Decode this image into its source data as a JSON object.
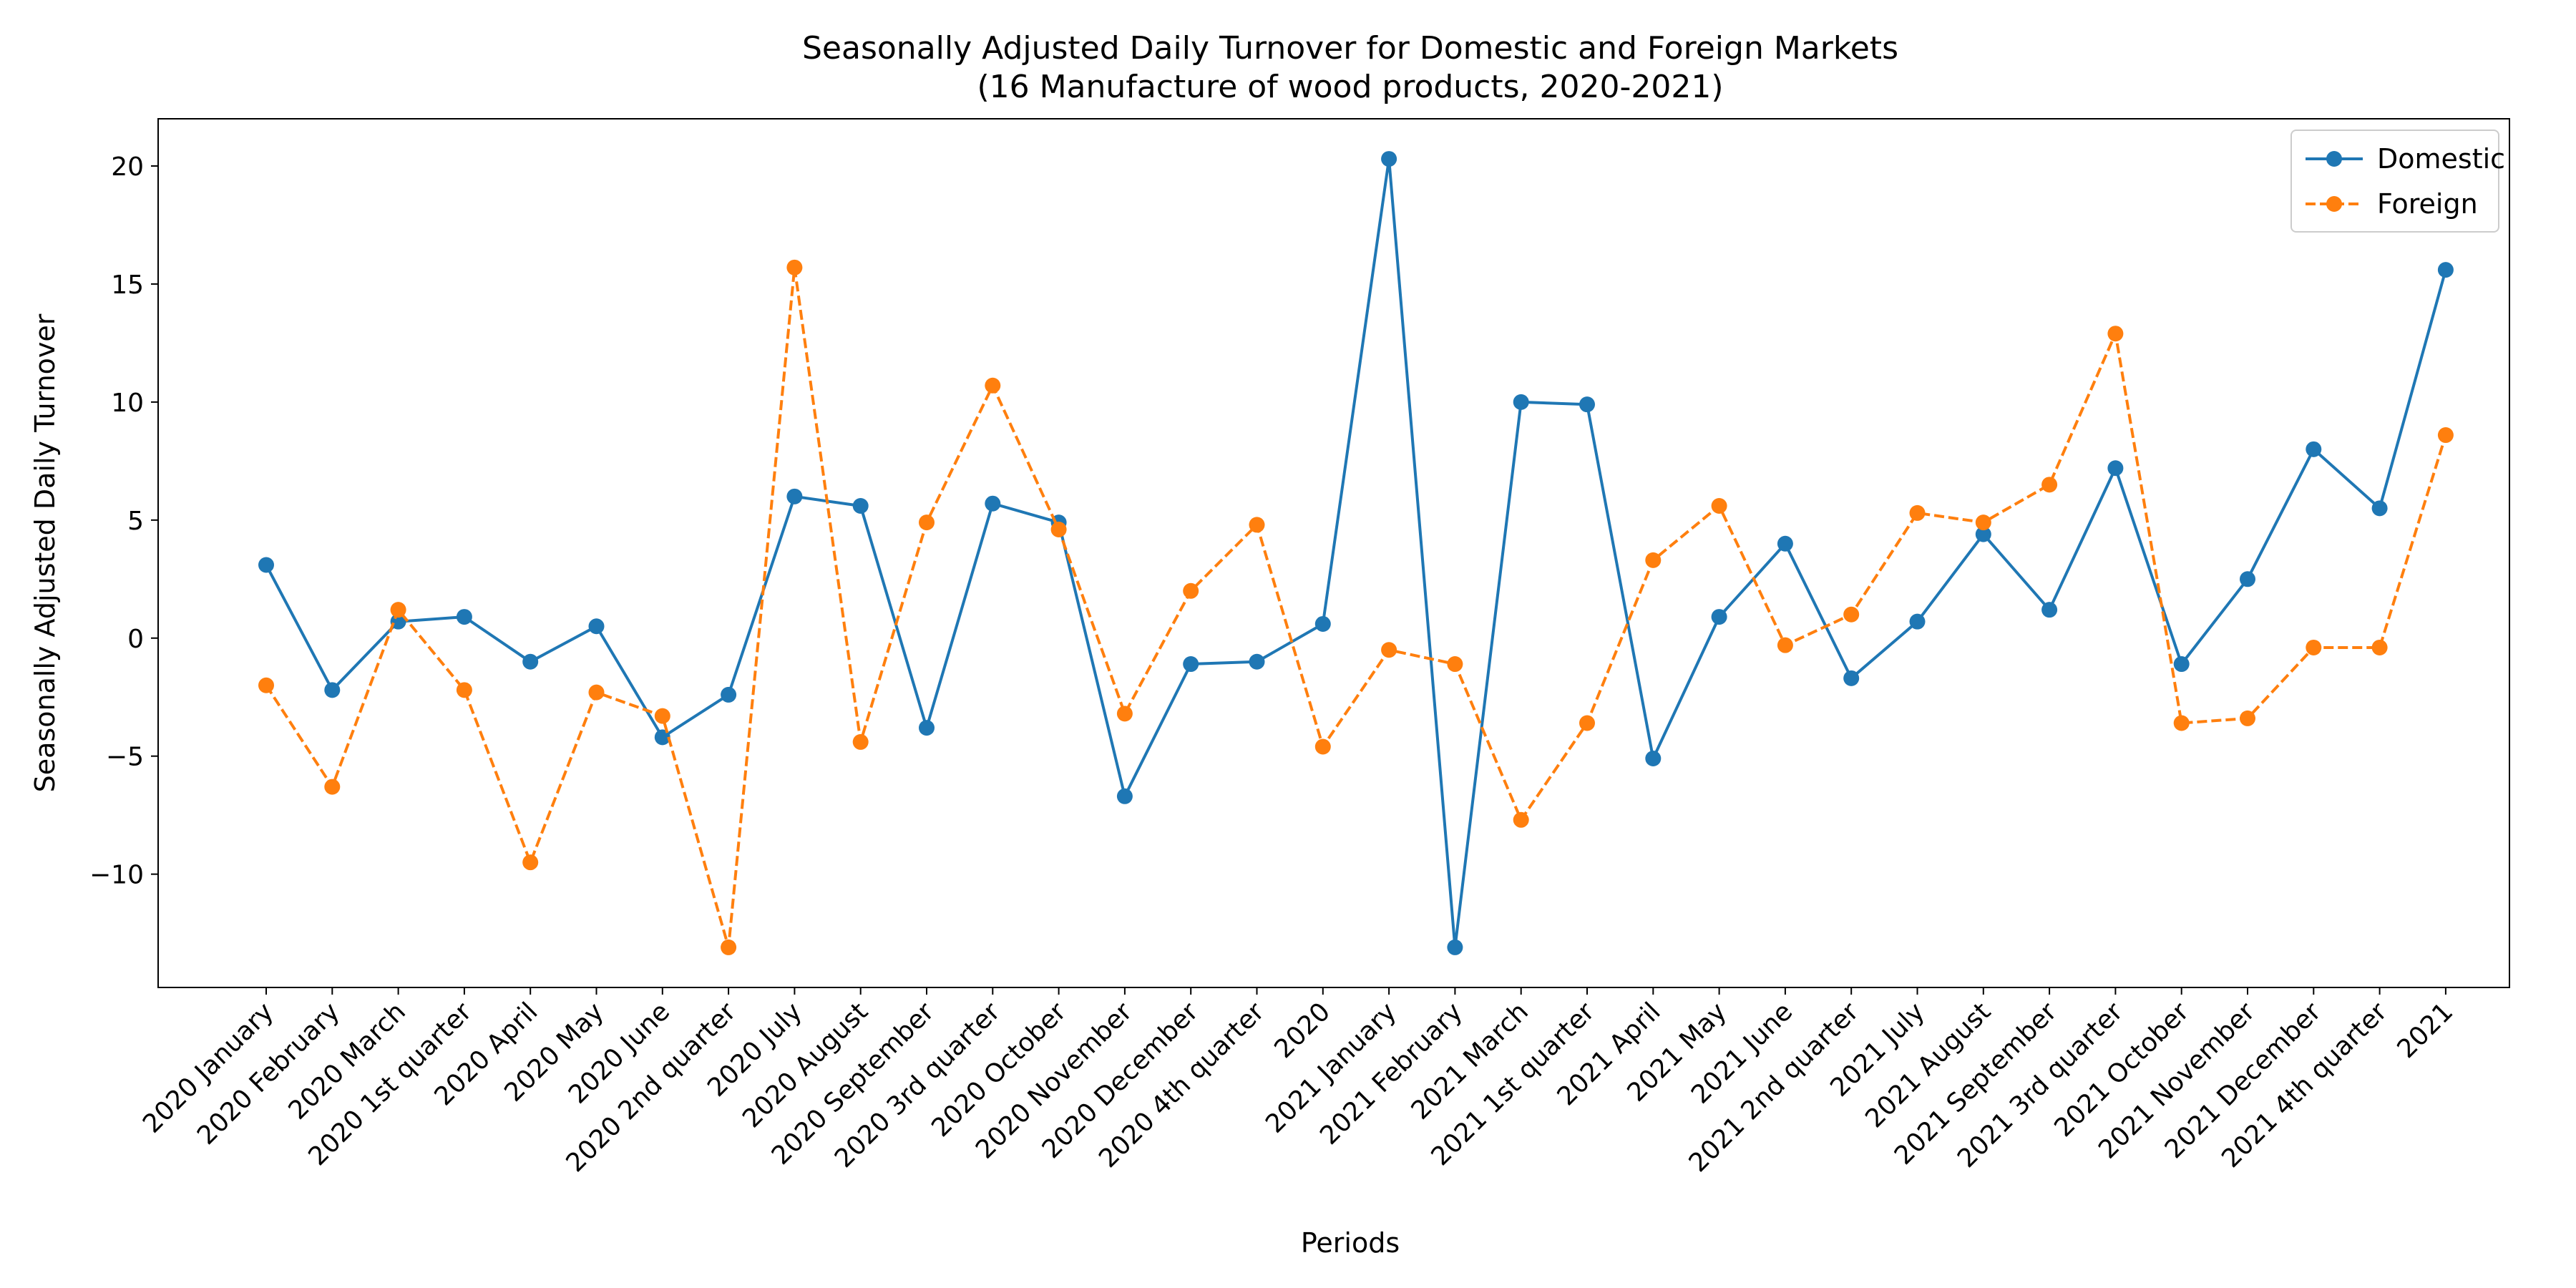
{
  "chart_data": {
    "type": "line",
    "title": "Seasonally Adjusted Daily Turnover for Domestic and Foreign Markets",
    "subtitle": "(16 Manufacture of wood products, 2020-2021)",
    "xlabel": "Periods",
    "ylabel": "Seasonally Adjusted Daily Turnover",
    "ylim": [
      -14.8,
      22
    ],
    "yticks": [
      -10,
      -5,
      0,
      5,
      10,
      15,
      20
    ],
    "ytick_labels": [
      "−10",
      "−5",
      "0",
      "5",
      "10",
      "15",
      "20"
    ],
    "grid": false,
    "legend_position": "top-right",
    "categories": [
      "2020 January",
      "2020 February",
      "2020 March",
      "2020 1st quarter",
      "2020 April",
      "2020 May",
      "2020 June",
      "2020 2nd quarter",
      "2020 July",
      "2020 August",
      "2020 September",
      "2020 3rd quarter",
      "2020 October",
      "2020 November",
      "2020 December",
      "2020 4th quarter",
      "2020",
      "2021 January",
      "2021 February",
      "2021 March",
      "2021 1st quarter",
      "2021 April",
      "2021 May",
      "2021 June",
      "2021 2nd quarter",
      "2021 July",
      "2021 August",
      "2021 September",
      "2021 3rd quarter",
      "2021 October",
      "2021 November",
      "2021 December",
      "2021 4th quarter",
      "2021"
    ],
    "series": [
      {
        "name": "Domestic",
        "color": "#1f77b4",
        "line_style": "solid",
        "marker": "circle",
        "values": [
          3.1,
          -2.2,
          0.7,
          0.9,
          -1.0,
          0.5,
          -4.2,
          -2.4,
          6.0,
          5.6,
          -3.8,
          5.7,
          4.9,
          -6.7,
          -1.1,
          -1.0,
          0.6,
          20.3,
          -13.1,
          10.0,
          9.9,
          -5.1,
          0.9,
          4.0,
          -1.7,
          0.7,
          4.4,
          1.2,
          7.2,
          -1.1,
          2.5,
          8.0,
          5.5,
          15.6
        ]
      },
      {
        "name": "Foreign",
        "color": "#ff7f0e",
        "line_style": "dashed",
        "marker": "circle",
        "values": [
          -2.0,
          -6.3,
          1.2,
          -2.2,
          -9.5,
          -2.3,
          -3.3,
          -13.1,
          15.7,
          -4.4,
          4.9,
          10.7,
          4.6,
          -3.2,
          2.0,
          4.8,
          -4.6,
          -0.5,
          -1.1,
          -7.7,
          -3.6,
          3.3,
          5.6,
          -0.3,
          1.0,
          5.3,
          4.9,
          6.5,
          12.9,
          -3.6,
          -3.4,
          -0.4,
          -0.4,
          8.6
        ]
      }
    ]
  }
}
